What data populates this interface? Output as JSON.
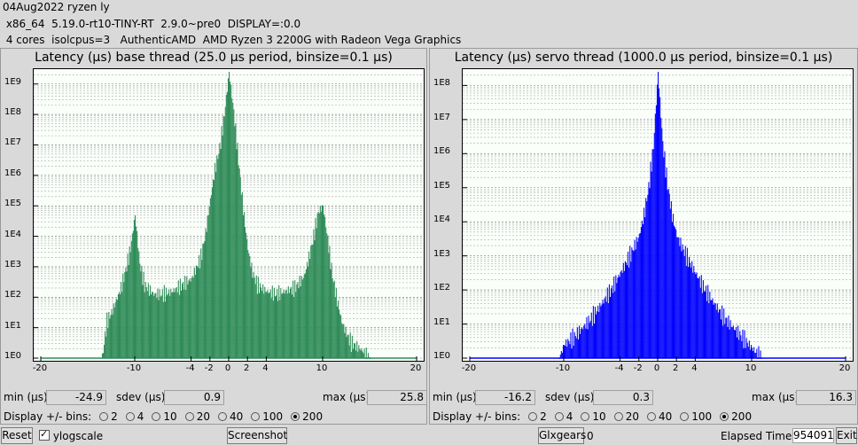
{
  "header": {
    "line1": "04Aug2022 ryzen ly",
    "line2": " x86_64  5.19.0-rt10-TINY-RT  2.9.0~pre0  DISPLAY=:0.0",
    "line3": " 4 cores  isolcpus=3   AuthenticAMD  AMD Ryzen 3 2200G with Radeon Vega Graphics"
  },
  "left": {
    "title": "Latency (µs) base thread (25.0 µs period, binsize=0.1 µs)",
    "min_label": "min (µs)",
    "min_value": "-24.9",
    "sdev_label": "sdev (µs)",
    "sdev_value": "0.9",
    "max_label": "max (µs)",
    "max_value": "25.8",
    "bins_label": "Display +/- bins:"
  },
  "right": {
    "title": "Latency (µs) servo thread (1000.0 µs period, binsize=0.1 µs)",
    "min_label": "min (µs)",
    "min_value": "-16.2",
    "sdev_label": "sdev (µs)",
    "sdev_value": "0.3",
    "max_label": "max (µs)",
    "max_value": "16.3",
    "bins_label": "Display +/- bins:"
  },
  "bins_options": [
    "2",
    "4",
    "10",
    "20",
    "40",
    "100",
    "200"
  ],
  "bins_selected": "200",
  "footer": {
    "reset": "Reset",
    "ylogscale": "ylogscale",
    "screenshot": "Screenshot",
    "glxgears": "Glxgears",
    "glxgears_value": "0",
    "elapsed_label": "Elapsed Time:",
    "elapsed_value": "954091",
    "exit": "Exit"
  },
  "chart_data": [
    {
      "type": "bar",
      "title": "Latency (µs) base thread (25.0 µs period, binsize=0.1 µs)",
      "xlim": [
        -20,
        20
      ],
      "ylog": true,
      "yticks": [
        "1E0",
        "1E1",
        "1E2",
        "1E3",
        "1E4",
        "1E5",
        "1E6",
        "1E7",
        "1E8",
        "1E9"
      ],
      "xticks": [
        "-20",
        "-10",
        "-4",
        "-2",
        "0",
        "2",
        "4",
        "10",
        "20"
      ],
      "color": "#2e8b57",
      "profile": [
        [
          -13.5,
          0
        ],
        [
          -13,
          1.2
        ],
        [
          -12.5,
          1.5
        ],
        [
          -12,
          1.9
        ],
        [
          -11.5,
          2.3
        ],
        [
          -11,
          2.9
        ],
        [
          -10.5,
          3.6
        ],
        [
          -10,
          4.7
        ],
        [
          -9.5,
          3.1
        ],
        [
          -9,
          2.4
        ],
        [
          -8,
          2.1
        ],
        [
          -7,
          2.1
        ],
        [
          -6,
          2.2
        ],
        [
          -5,
          2.4
        ],
        [
          -4,
          2.6
        ],
        [
          -3,
          3.3
        ],
        [
          -2.5,
          4.1
        ],
        [
          -2,
          5.2
        ],
        [
          -1.5,
          6.2
        ],
        [
          -1,
          6.9
        ],
        [
          -0.5,
          8.0
        ],
        [
          0,
          9.4
        ],
        [
          0.5,
          8.1
        ],
        [
          1,
          6.5
        ],
        [
          1.5,
          4.9
        ],
        [
          2,
          3.6
        ],
        [
          2.5,
          2.8
        ],
        [
          3,
          2.4
        ],
        [
          4,
          2.2
        ],
        [
          5,
          2.1
        ],
        [
          6,
          2.2
        ],
        [
          7,
          2.3
        ],
        [
          8,
          2.7
        ],
        [
          8.5,
          3.3
        ],
        [
          9,
          4.0
        ],
        [
          9.5,
          4.8
        ],
        [
          10,
          5.0
        ],
        [
          10.5,
          3.9
        ],
        [
          11,
          2.7
        ],
        [
          11.5,
          1.9
        ],
        [
          12,
          1.2
        ],
        [
          12.5,
          0.8
        ],
        [
          13,
          0.5
        ],
        [
          14,
          0.3
        ],
        [
          15,
          0
        ]
      ]
    },
    {
      "type": "bar",
      "title": "Latency (µs) servo thread (1000.0 µs period, binsize=0.1 µs)",
      "xlim": [
        -20,
        20
      ],
      "ylog": true,
      "yticks": [
        "1E0",
        "1E1",
        "1E2",
        "1E3",
        "1E4",
        "1E5",
        "1E6",
        "1E7",
        "1E8"
      ],
      "xticks": [
        "-20",
        "-10",
        "-4",
        "-2",
        "0",
        "2",
        "4",
        "10",
        "20"
      ],
      "color": "#0000ff",
      "profile": [
        [
          -10.5,
          0
        ],
        [
          -10,
          0.4
        ],
        [
          -9,
          0.6
        ],
        [
          -8,
          0.9
        ],
        [
          -7,
          1.2
        ],
        [
          -6,
          1.6
        ],
        [
          -5,
          2.0
        ],
        [
          -4,
          2.5
        ],
        [
          -3,
          3.0
        ],
        [
          -2,
          3.6
        ],
        [
          -1.5,
          4.2
        ],
        [
          -1,
          5.0
        ],
        [
          -0.5,
          6.2
        ],
        [
          0,
          8.4
        ],
        [
          0.5,
          6.3
        ],
        [
          1,
          5.1
        ],
        [
          1.5,
          4.2
        ],
        [
          2,
          3.6
        ],
        [
          3,
          3.0
        ],
        [
          4,
          2.5
        ],
        [
          5,
          2.0
        ],
        [
          6,
          1.6
        ],
        [
          7,
          1.2
        ],
        [
          8,
          0.9
        ],
        [
          9,
          0.6
        ],
        [
          10,
          0.3
        ],
        [
          11,
          0
        ]
      ]
    }
  ]
}
